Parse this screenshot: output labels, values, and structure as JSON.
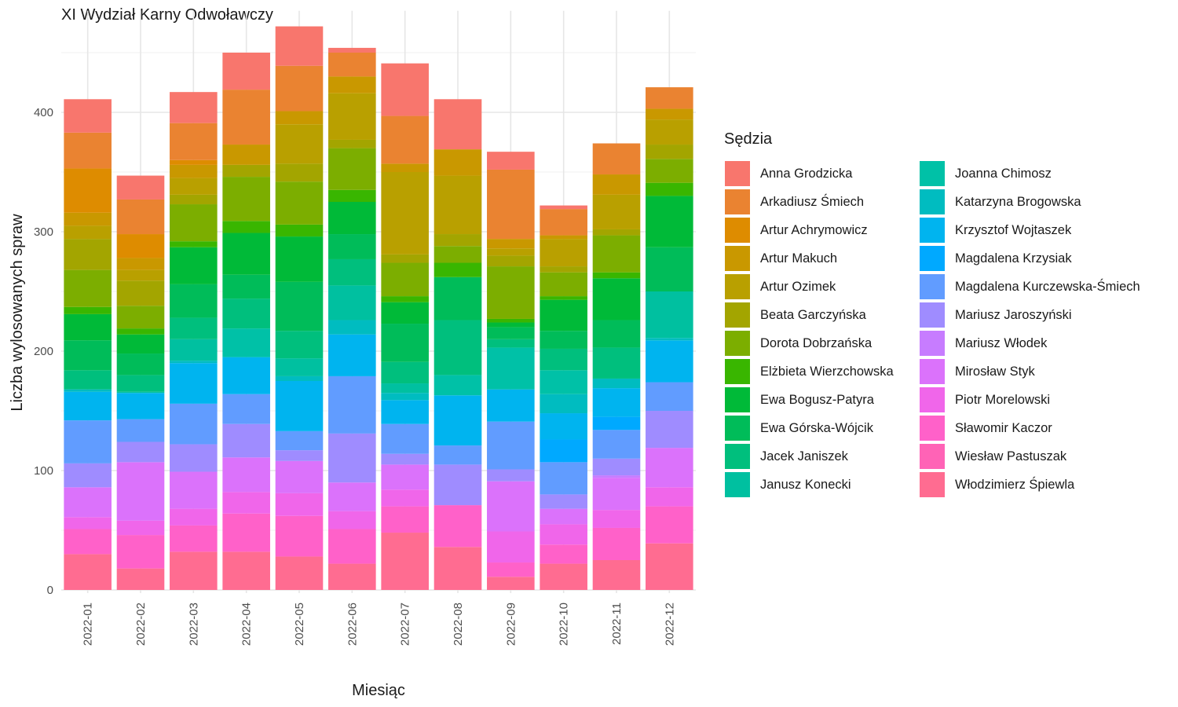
{
  "chart_data": {
    "type": "bar",
    "stacked": true,
    "title": "XI Wydział Karny Odwoławczy",
    "xlabel": "Miesiąc",
    "ylabel": "Liczba wylosowanych spraw",
    "ylim": [
      0,
      485
    ],
    "yticks": [
      0,
      100,
      200,
      300,
      400
    ],
    "grid": true,
    "legend_title": "Sędzia",
    "legend_position": "right",
    "categories": [
      "2022-01",
      "2022-02",
      "2022-03",
      "2022-04",
      "2022-05",
      "2022-06",
      "2022-07",
      "2022-08",
      "2022-09",
      "2022-10",
      "2022-11",
      "2022-12"
    ],
    "series": [
      {
        "name": "Anna Grodzicka",
        "color": "#F8766D",
        "values": [
          28,
          20,
          26,
          31,
          33,
          4,
          44,
          42,
          15,
          3,
          0,
          0
        ]
      },
      {
        "name": "Arkadiusz Śmiech",
        "color": "#EA8331",
        "values": [
          30,
          29,
          31,
          46,
          38,
          20,
          40,
          0,
          58,
          22,
          26,
          18
        ]
      },
      {
        "name": "Artur Achrymowicz",
        "color": "#DE8C00",
        "values": [
          37,
          20,
          4,
          0,
          0,
          0,
          0,
          0,
          0,
          0,
          0,
          0
        ]
      },
      {
        "name": "Artur Makuch",
        "color": "#C99800",
        "values": [
          11,
          10,
          11,
          17,
          11,
          14,
          7,
          22,
          8,
          3,
          17,
          9
        ]
      },
      {
        "name": "Artur Ozimek",
        "color": "#B9A000",
        "values": [
          11,
          9,
          14,
          0,
          33,
          39,
          69,
          49,
          6,
          23,
          29,
          21
        ]
      },
      {
        "name": "Beata Garczyńska",
        "color": "#A3A500",
        "values": [
          26,
          21,
          8,
          10,
          15,
          7,
          7,
          10,
          9,
          5,
          5,
          12
        ]
      },
      {
        "name": "Dorota Dobrzańska",
        "color": "#7CAE00",
        "values": [
          31,
          19,
          31,
          37,
          36,
          35,
          28,
          14,
          44,
          20,
          31,
          20
        ]
      },
      {
        "name": "Elżbieta Wierzchowska",
        "color": "#39B600",
        "values": [
          6,
          5,
          5,
          10,
          10,
          10,
          5,
          12,
          3,
          3,
          5,
          11
        ]
      },
      {
        "name": "Ewa Bogusz-Patyra",
        "color": "#00BA38",
        "values": [
          22,
          16,
          31,
          35,
          38,
          27,
          18,
          0,
          4,
          26,
          35,
          43
        ]
      },
      {
        "name": "Ewa Górska-Wójcik",
        "color": "#00BC59",
        "values": [
          25,
          18,
          28,
          20,
          41,
          21,
          32,
          36,
          10,
          15,
          23,
          37
        ]
      },
      {
        "name": "Jacek Janiszek",
        "color": "#00BF7D",
        "values": [
          16,
          14,
          18,
          25,
          23,
          22,
          18,
          46,
          7,
          18,
          26,
          0
        ]
      },
      {
        "name": "Janusz Konecki",
        "color": "#00C0A0",
        "values": [
          0,
          1,
          18,
          0,
          15,
          29,
          8,
          0,
          0,
          0,
          0,
          39
        ]
      },
      {
        "name": "Joanna Chimosz",
        "color": "#00C1A7",
        "values": [
          0,
          0,
          0,
          24,
          0,
          0,
          0,
          17,
          35,
          20,
          0,
          0
        ]
      },
      {
        "name": "Katarzyna Brogowska",
        "color": "#00BCC0",
        "values": [
          2,
          0,
          2,
          0,
          4,
          12,
          6,
          0,
          0,
          16,
          8,
          2
        ]
      },
      {
        "name": "Krzysztof Wojtaszek",
        "color": "#00B4EF",
        "values": [
          24,
          22,
          34,
          31,
          42,
          35,
          20,
          42,
          27,
          22,
          24,
          35
        ]
      },
      {
        "name": "Magdalena Krzysiak",
        "color": "#00A9FF",
        "values": [
          0,
          0,
          0,
          0,
          0,
          0,
          0,
          0,
          0,
          19,
          11,
          0
        ]
      },
      {
        "name": "Magdalena Kurczewska-Śmiech",
        "color": "#619CFF",
        "values": [
          36,
          19,
          34,
          25,
          16,
          48,
          25,
          16,
          40,
          27,
          24,
          24
        ]
      },
      {
        "name": "Mariusz Jaroszyński",
        "color": "#9F8CFF",
        "values": [
          20,
          17,
          23,
          28,
          9,
          41,
          9,
          34,
          10,
          12,
          14,
          31
        ]
      },
      {
        "name": "Mariusz Włodek",
        "color": "#C77CFF",
        "values": [
          0,
          0,
          0,
          0,
          0,
          0,
          0,
          0,
          0,
          0,
          2,
          0
        ]
      },
      {
        "name": "Mirosław Styk",
        "color": "#DB72FB",
        "values": [
          25,
          49,
          31,
          29,
          27,
          24,
          21,
          0,
          42,
          13,
          27,
          33
        ]
      },
      {
        "name": "Piotr Morelowski",
        "color": "#F066EA",
        "values": [
          10,
          12,
          14,
          18,
          19,
          15,
          14,
          0,
          26,
          17,
          15,
          16
        ]
      },
      {
        "name": "Sławomir Kaczor",
        "color": "#FF61C9",
        "values": [
          21,
          28,
          22,
          32,
          34,
          29,
          22,
          35,
          12,
          16,
          27,
          31
        ]
      },
      {
        "name": "Wiesław Pastuszak",
        "color": "#FF63B6",
        "values": [
          0,
          0,
          0,
          0,
          0,
          0,
          0,
          0,
          0,
          0,
          0,
          0
        ]
      },
      {
        "name": "Włodzimierz Śpiewla",
        "color": "#FF6C91",
        "values": [
          30,
          18,
          32,
          32,
          28,
          22,
          48,
          36,
          11,
          22,
          25,
          39
        ]
      }
    ]
  }
}
